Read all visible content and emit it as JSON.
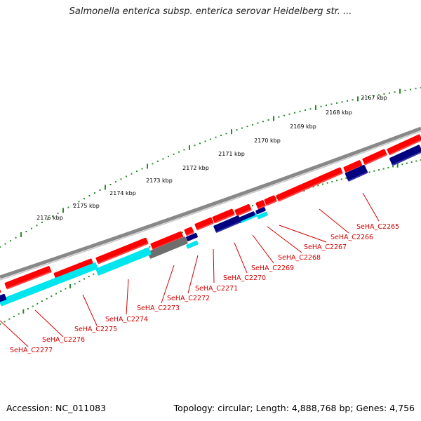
{
  "title": "Salmonella enterica subsp. enterica serovar Heidelberg str. ...",
  "accession": "Accession: NC_011083",
  "topology": "Topology: circular; Length: 4,888,768 bp; Genes: 4,756",
  "colors": {
    "backbone": "#888888",
    "forward_cds": "#ff0000",
    "reverse_cds": "#000080",
    "cyan_feature": "#00e5ee",
    "gray_feature": "#6e6e6e",
    "scale_ticks": "#2a8a2a",
    "labels": "#d40000"
  },
  "scale_labels": [
    "2167 kbp",
    "2168 kbp",
    "2169 kbp",
    "2170 kbp",
    "2171 kbp",
    "2172 kbp",
    "2173 kbp",
    "2174 kbp",
    "2175 kbp",
    "2176 kbp"
  ],
  "gene_labels": [
    "SeHA_C2265",
    "SeHA_C2266",
    "SeHA_C2267",
    "SeHA_C2268",
    "SeHA_C2269",
    "SeHA_C2270",
    "SeHA_C2271",
    "SeHA_C2272",
    "SeHA_C2273",
    "SeHA_C2274",
    "SeHA_C2275",
    "SeHA_C2276",
    "SeHA_C2277"
  ]
}
